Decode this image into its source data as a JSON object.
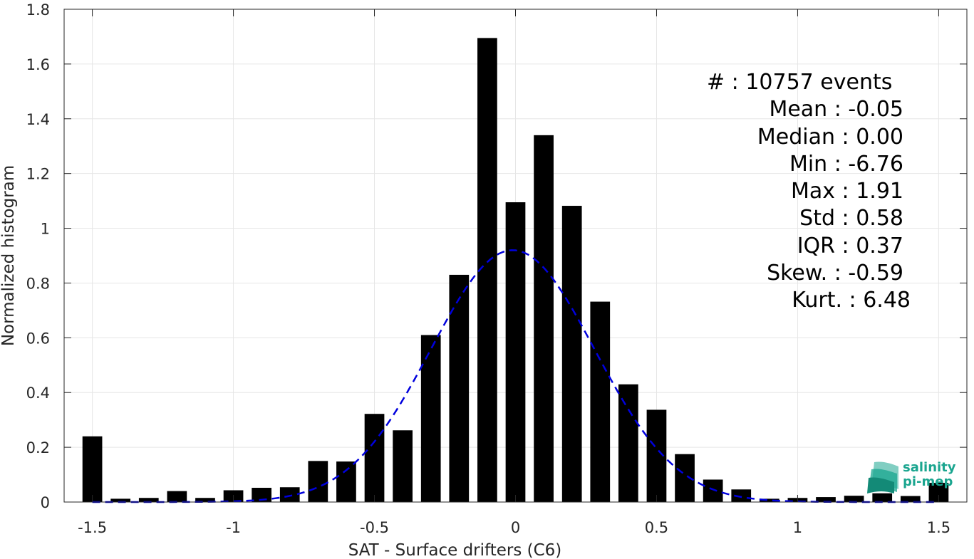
{
  "chart_data": {
    "type": "bar",
    "xlabel": "SAT - Surface drifters (C6)",
    "ylabel": "Normalized histogram",
    "xlim": [
      -1.6,
      1.6
    ],
    "ylim": [
      0,
      1.8
    ],
    "xticks": [
      -1.5,
      -1,
      -0.5,
      0,
      0.5,
      1,
      1.5
    ],
    "xtick_labels": [
      "-1.5",
      "-1",
      "-0.5",
      "0",
      "0.5",
      "1",
      "1.5"
    ],
    "yticks": [
      0,
      0.2,
      0.4,
      0.6,
      0.8,
      1,
      1.2,
      1.4,
      1.6,
      1.8
    ],
    "ytick_labels": [
      "0",
      "0.2",
      "0.4",
      "0.6",
      "0.8",
      "1",
      "1.2",
      "1.4",
      "1.6",
      "1.8"
    ],
    "grid": true,
    "bar_color": "#000000",
    "bin_centers": [
      -1.5,
      -1.4,
      -1.3,
      -1.2,
      -1.1,
      -1.0,
      -0.9,
      -0.8,
      -0.7,
      -0.6,
      -0.5,
      -0.4,
      -0.3,
      -0.2,
      -0.1,
      0.0,
      0.1,
      0.2,
      0.3,
      0.4,
      0.5,
      0.6,
      0.7,
      0.8,
      0.9,
      1.0,
      1.1,
      1.2,
      1.3,
      1.4,
      1.5
    ],
    "values": [
      0.24,
      0.012,
      0.015,
      0.04,
      0.015,
      0.043,
      0.052,
      0.054,
      0.15,
      0.148,
      0.322,
      0.262,
      0.61,
      0.83,
      1.695,
      1.095,
      1.34,
      1.082,
      0.732,
      0.43,
      0.337,
      0.175,
      0.082,
      0.046,
      0.012,
      0.015,
      0.018,
      0.023,
      0.032,
      0.022,
      0.07
    ],
    "bar_width": 0.07,
    "fit": {
      "type": "gaussian",
      "mean": -0.01,
      "std": 0.29,
      "peak": 0.92,
      "color": "#0000dd",
      "style": "dashed",
      "x_range": [
        -1.5,
        1.5
      ]
    },
    "annotation": [
      "#  : 10757 events",
      "Mean : -0.05",
      "Median : 0.00",
      "Min : -6.76",
      "Max : 1.91",
      "Std : 0.58",
      "IQR : 0.37",
      "Skew. : -0.59",
      "Kurt. : 6.48"
    ]
  },
  "logo": {
    "line1": "salinity",
    "line2": "pi-mep",
    "color": "#1aa58f"
  }
}
